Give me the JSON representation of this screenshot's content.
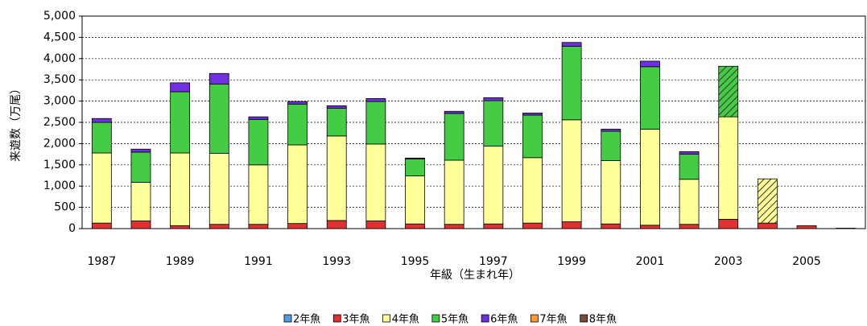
{
  "chart_data": {
    "type": "stacked_bar",
    "y_label": "来遊数（万尾）",
    "x_label": "年級（生まれ年）",
    "categories": [
      "1987",
      null,
      "1989",
      null,
      "1991",
      null,
      "1993",
      null,
      "1995",
      null,
      "1997",
      null,
      "1999",
      null,
      "2001",
      null,
      "2003",
      null,
      "2005",
      null
    ],
    "series": [
      {
        "name": "2年魚",
        "color": "#4f9fe0",
        "values": [
          0,
          0,
          0,
          0,
          0,
          0,
          0,
          0,
          0,
          0,
          0,
          0,
          0,
          0,
          0,
          0,
          0,
          0,
          0,
          10
        ]
      },
      {
        "name": "3年魚",
        "color": "#e03030",
        "values": [
          130,
          180,
          70,
          100,
          100,
          120,
          190,
          180,
          110,
          100,
          110,
          130,
          160,
          110,
          80,
          100,
          220,
          130,
          70,
          0
        ]
      },
      {
        "name": "4年魚",
        "color": "#ffff99",
        "values": [
          1650,
          910,
          1710,
          1670,
          1400,
          1850,
          1990,
          1810,
          1130,
          1510,
          1830,
          1540,
          2400,
          1490,
          2260,
          1060,
          2410,
          1040,
          0,
          0
        ],
        "hatched": [
          17
        ]
      },
      {
        "name": "5年魚",
        "color": "#44cc44",
        "values": [
          720,
          710,
          1440,
          1630,
          1070,
          960,
          650,
          1000,
          400,
          1100,
          1070,
          1000,
          1730,
          690,
          1470,
          590,
          1190,
          0,
          0,
          0
        ],
        "hatched": [
          16
        ]
      },
      {
        "name": "6年魚",
        "color": "#7030e0",
        "values": [
          90,
          70,
          210,
          250,
          60,
          60,
          60,
          70,
          20,
          50,
          70,
          50,
          90,
          50,
          130,
          60,
          0,
          0,
          0,
          0
        ]
      },
      {
        "name": "7年魚",
        "color": "#ff9933",
        "values": [
          0,
          0,
          0,
          0,
          0,
          0,
          0,
          0,
          0,
          0,
          0,
          0,
          0,
          0,
          0,
          0,
          0,
          0,
          0,
          0
        ]
      },
      {
        "name": "8年魚",
        "color": "#7a4a3a",
        "values": [
          0,
          0,
          0,
          0,
          0,
          0,
          0,
          0,
          0,
          0,
          0,
          0,
          0,
          0,
          0,
          0,
          0,
          0,
          0,
          0
        ]
      }
    ],
    "ylim": [
      0,
      5000
    ],
    "yticks": [
      0,
      {
        "value": 500,
        "label": "500"
      },
      {
        "value": 1000,
        "label": "1,000"
      },
      {
        "value": 1500,
        "label": "1,500"
      },
      {
        "value": 2000,
        "label": "2,000"
      },
      {
        "value": 2500,
        "label": "2,500"
      },
      {
        "value": 3000,
        "label": "3,000"
      },
      {
        "value": 3500,
        "label": "3,500"
      },
      {
        "value": 4000,
        "label": "4,000"
      },
      {
        "value": 4500,
        "label": "4,500"
      },
      {
        "value": 5000,
        "label": "5,000"
      }
    ],
    "grid": true
  }
}
